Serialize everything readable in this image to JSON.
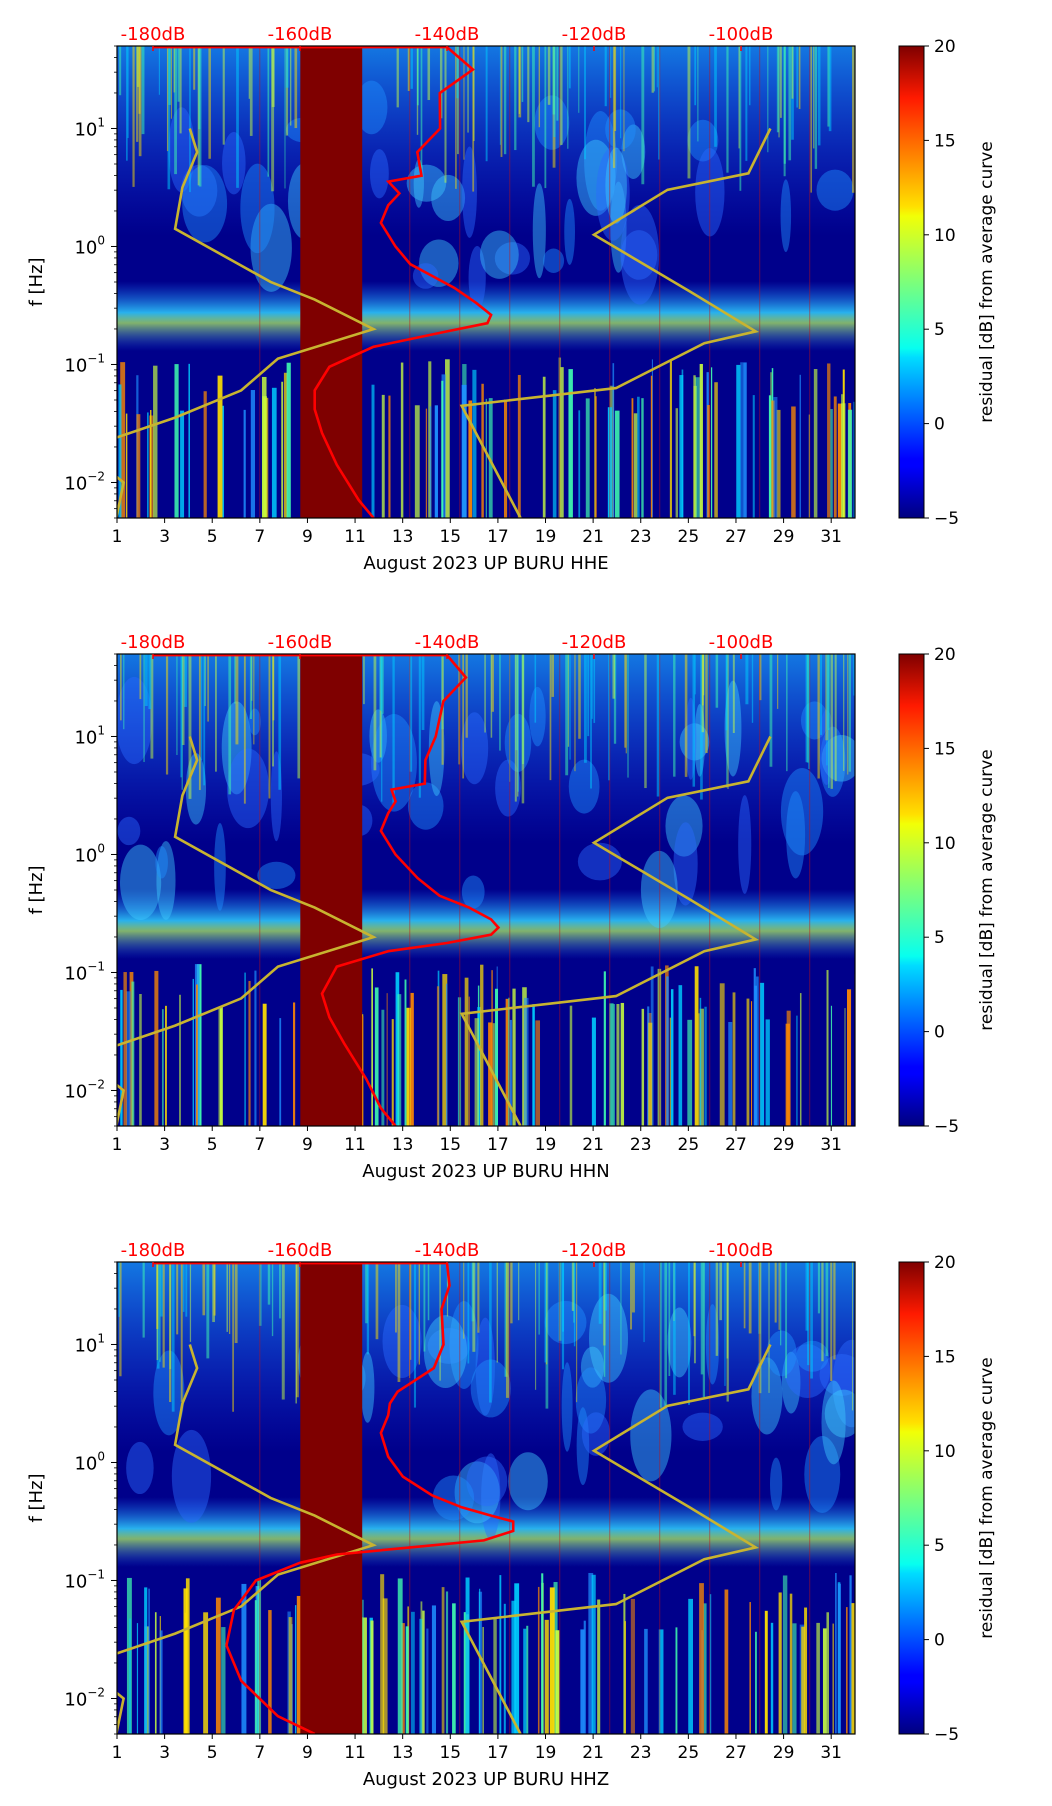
{
  "figure": {
    "colorbar_label": "residual [dB] from average curve",
    "colorbar_ticks": [
      "20",
      "15",
      "10",
      "5",
      "0",
      "−5"
    ],
    "colorbar_range": [
      -5,
      20
    ],
    "colors": {
      "background": "#00008b",
      "gap": "#7f0000",
      "median_curve": "#ff0000",
      "model_curve": "#c8b430",
      "db_axis_text": "#ff0000"
    }
  },
  "chart_data": [
    {
      "type": "heatmap",
      "title": "",
      "xlabel": "August 2023 UP BURU  HHE",
      "ylabel": "f [Hz]",
      "xticks": [
        "1",
        "3",
        "5",
        "7",
        "9",
        "11",
        "13",
        "15",
        "17",
        "19",
        "21",
        "23",
        "25",
        "27",
        "29",
        "31"
      ],
      "xlim": [
        1,
        32
      ],
      "ylim_hz": [
        0.005,
        50
      ],
      "yticks": [
        {
          "base": "10",
          "exp": "1"
        },
        {
          "base": "10",
          "exp": "0"
        },
        {
          "base": "10",
          "exp": "−1"
        },
        {
          "base": "10",
          "exp": "−2"
        }
      ],
      "top_axis_db": [
        "-180dB",
        "-160dB",
        "-140dB",
        "-120dB",
        "-100dB"
      ],
      "data_gap_days": [
        8.7,
        11.3
      ]
    },
    {
      "type": "heatmap",
      "title": "",
      "xlabel": "August 2023 UP BURU  HHN",
      "ylabel": "f [Hz]",
      "xticks": [
        "1",
        "3",
        "5",
        "7",
        "9",
        "11",
        "13",
        "15",
        "17",
        "19",
        "21",
        "23",
        "25",
        "27",
        "29",
        "31"
      ],
      "xlim": [
        1,
        32
      ],
      "ylim_hz": [
        0.005,
        50
      ],
      "yticks": [
        {
          "base": "10",
          "exp": "1"
        },
        {
          "base": "10",
          "exp": "0"
        },
        {
          "base": "10",
          "exp": "−1"
        },
        {
          "base": "10",
          "exp": "−2"
        }
      ],
      "top_axis_db": [
        "-180dB",
        "-160dB",
        "-140dB",
        "-120dB",
        "-100dB"
      ],
      "data_gap_days": [
        8.7,
        11.3
      ]
    },
    {
      "type": "heatmap",
      "title": "",
      "xlabel": "August 2023 UP BURU  HHZ",
      "ylabel": "f [Hz]",
      "xticks": [
        "1",
        "3",
        "5",
        "7",
        "9",
        "11",
        "13",
        "15",
        "17",
        "19",
        "21",
        "23",
        "25",
        "27",
        "29",
        "31"
      ],
      "xlim": [
        1,
        32
      ],
      "ylim_hz": [
        0.005,
        50
      ],
      "yticks": [
        {
          "base": "10",
          "exp": "1"
        },
        {
          "base": "10",
          "exp": "0"
        },
        {
          "base": "10",
          "exp": "−1"
        },
        {
          "base": "10",
          "exp": "−2"
        }
      ],
      "top_axis_db": [
        "-180dB",
        "-160dB",
        "-140dB",
        "-120dB",
        "-100dB"
      ],
      "data_gap_days": [
        8.7,
        11.3
      ]
    }
  ]
}
